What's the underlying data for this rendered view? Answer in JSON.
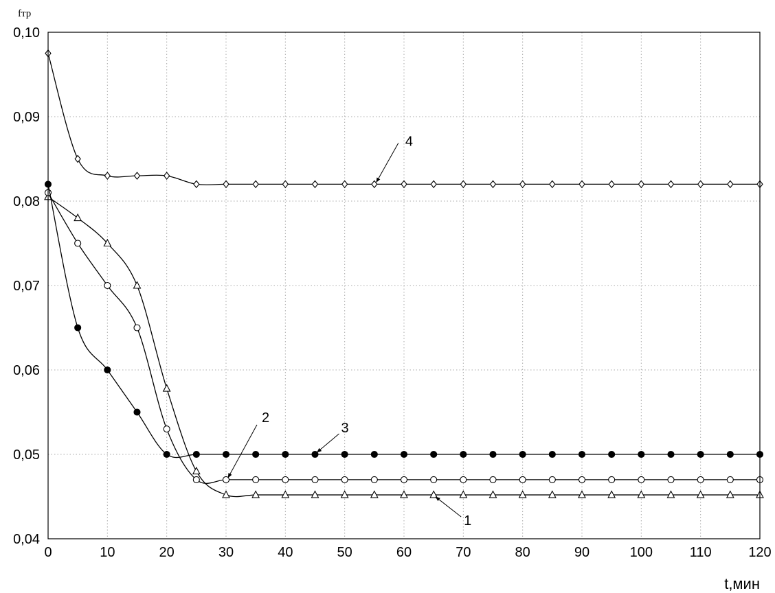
{
  "chart_data": {
    "type": "line",
    "title": "",
    "xlabel": "t,мин",
    "ylabel": "fтр",
    "xlim": [
      0,
      120
    ],
    "ylim": [
      0.04,
      0.1
    ],
    "x_ticks": [
      0,
      10,
      20,
      30,
      40,
      50,
      60,
      70,
      80,
      90,
      100,
      110,
      120
    ],
    "x_tick_labels": [
      "0",
      "10",
      "20",
      "30",
      "40",
      "50",
      "60",
      "70",
      "80",
      "90",
      "100",
      "110",
      "120"
    ],
    "y_ticks": [
      0.04,
      0.05,
      0.06,
      0.07,
      0.08,
      0.09,
      0.1
    ],
    "y_tick_labels": [
      "0,04",
      "0,05",
      "0,06",
      "0,07",
      "0,08",
      "0,09",
      "0,10"
    ],
    "grid": true,
    "x": [
      0,
      5,
      10,
      15,
      20,
      25,
      30,
      35,
      40,
      45,
      50,
      55,
      60,
      65,
      70,
      75,
      80,
      85,
      90,
      95,
      100,
      105,
      110,
      115,
      120
    ],
    "series": [
      {
        "name": "1",
        "marker": "triangle",
        "values": [
          0.0805,
          0.078,
          0.075,
          0.07,
          0.0578,
          0.048,
          0.0452,
          0.0452,
          0.0452,
          0.0452,
          0.0452,
          0.0452,
          0.0452,
          0.0452,
          0.0452,
          0.0452,
          0.0452,
          0.0452,
          0.0452,
          0.0452,
          0.0452,
          0.0452,
          0.0452,
          0.0452,
          0.0452
        ]
      },
      {
        "name": "2",
        "marker": "circle",
        "values": [
          0.081,
          0.075,
          0.07,
          0.065,
          0.053,
          0.047,
          0.047,
          0.047,
          0.047,
          0.047,
          0.047,
          0.047,
          0.047,
          0.047,
          0.047,
          0.047,
          0.047,
          0.047,
          0.047,
          0.047,
          0.047,
          0.047,
          0.047,
          0.047,
          0.047
        ]
      },
      {
        "name": "3",
        "marker": "filled-circle",
        "values": [
          0.082,
          0.065,
          0.06,
          0.055,
          0.05,
          0.05,
          0.05,
          0.05,
          0.05,
          0.05,
          0.05,
          0.05,
          0.05,
          0.05,
          0.05,
          0.05,
          0.05,
          0.05,
          0.05,
          0.05,
          0.05,
          0.05,
          0.05,
          0.05,
          0.05
        ]
      },
      {
        "name": "4",
        "marker": "diamond",
        "values": [
          0.0975,
          0.085,
          0.083,
          0.083,
          0.083,
          0.082,
          0.082,
          0.082,
          0.082,
          0.082,
          0.082,
          0.082,
          0.082,
          0.082,
          0.082,
          0.082,
          0.082,
          0.082,
          0.082,
          0.082,
          0.082,
          0.082,
          0.082,
          0.082,
          0.082
        ]
      }
    ],
    "annotations": [
      {
        "text": "1",
        "series": "1",
        "at_x": 65
      },
      {
        "text": "2",
        "series": "2",
        "at_x": 30
      },
      {
        "text": "3",
        "series": "3",
        "at_x": 45
      },
      {
        "text": "4",
        "series": "4",
        "at_x": 55
      }
    ]
  }
}
